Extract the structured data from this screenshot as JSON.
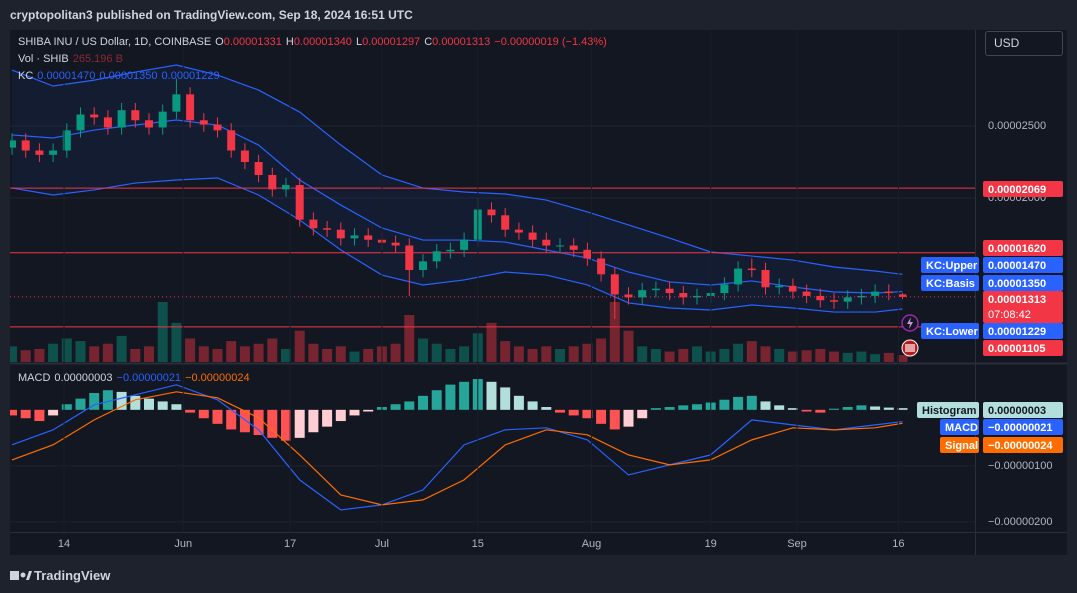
{
  "header": "cryptopolitan3 published on TradingView.com, Sep 18, 2024 16:51 UTC",
  "footer": "TradingView",
  "chart_data": {
    "type": "candlestick",
    "title": "SHIBA INU / US Dollar, 1D, COINBASE",
    "currency": "USD",
    "ohlc_legend": [
      {
        "key": "O",
        "value": "0.00001331"
      },
      {
        "key": "H",
        "value": "0.00001340"
      },
      {
        "key": "L",
        "value": "0.00001297"
      },
      {
        "key": "C",
        "value": "0.00001313"
      }
    ],
    "change": "−0.00000019 (−1.43%)",
    "up_color": "#089981",
    "down_color": "#f23645",
    "open": [
      2.35e-05,
      2.4e-05,
      2.33e-05,
      2.3e-05,
      2.33e-05,
      2.47e-05,
      2.58e-05,
      2.56e-05,
      2.49e-05,
      2.61e-05,
      2.54e-05,
      2.49e-05,
      2.6e-05,
      2.72e-05,
      2.54e-05,
      2.51e-05,
      2.47e-05,
      2.33e-05,
      2.25e-05,
      2.16e-05,
      2.06e-05,
      2.09e-05,
      1.85e-05,
      1.79e-05,
      1.78e-05,
      1.72e-05,
      1.74e-05,
      1.71e-05,
      1.69e-05,
      1.67e-05,
      1.5e-05,
      1.56e-05,
      1.63e-05,
      1.64e-05,
      1.71e-05,
      1.92e-05,
      1.88e-05,
      1.78e-05,
      1.76e-05,
      1.71e-05,
      1.67e-05,
      1.67e-05,
      1.64e-05,
      1.58e-05,
      1.47e-05,
      1.33e-05,
      1.31e-05,
      1.36e-05,
      1.37e-05,
      1.34e-05,
      1.31e-05,
      1.32e-05,
      1.34e-05,
      1.4e-05,
      1.51e-05,
      1.5e-05,
      1.38e-05,
      1.39e-05,
      1.35e-05,
      1.32e-05,
      1.29e-05,
      1.28e-05,
      1.31e-05,
      1.32e-05,
      1.35e-05,
      1.331e-05
    ],
    "high": [
      2.45e-05,
      2.45e-05,
      2.38e-05,
      2.38e-05,
      2.52e-05,
      2.63e-05,
      2.63e-05,
      2.61e-05,
      2.66e-05,
      2.66e-05,
      2.59e-05,
      2.65e-05,
      2.83e-05,
      2.77e-05,
      2.59e-05,
      2.56e-05,
      2.52e-05,
      2.38e-05,
      2.3e-05,
      2.21e-05,
      2.14e-05,
      2.14e-05,
      1.9e-05,
      1.84e-05,
      1.83e-05,
      1.79e-05,
      1.79e-05,
      1.76e-05,
      1.74e-05,
      1.72e-05,
      1.61e-05,
      1.68e-05,
      1.69e-05,
      1.76e-05,
      2e-05,
      1.97e-05,
      1.93e-05,
      1.83e-05,
      1.81e-05,
      1.76e-05,
      1.72e-05,
      1.72e-05,
      1.69e-05,
      1.63e-05,
      1.52e-05,
      1.38e-05,
      1.41e-05,
      1.42e-05,
      1.42e-05,
      1.39e-05,
      1.37e-05,
      1.39e-05,
      1.45e-05,
      1.56e-05,
      1.58e-05,
      1.55e-05,
      1.44e-05,
      1.44e-05,
      1.4e-05,
      1.37e-05,
      1.34e-05,
      1.36e-05,
      1.37e-05,
      1.4e-05,
      1.4e-05,
      1.34e-05
    ],
    "low": [
      2.3e-05,
      2.28e-05,
      2.25e-05,
      2.25e-05,
      2.28e-05,
      2.42e-05,
      2.51e-05,
      2.44e-05,
      2.44e-05,
      2.49e-05,
      2.44e-05,
      2.44e-05,
      2.55e-05,
      2.49e-05,
      2.46e-05,
      2.42e-05,
      2.28e-05,
      2.2e-05,
      2.11e-05,
      2.01e-05,
      2.01e-05,
      1.8e-05,
      1.74e-05,
      1.73e-05,
      1.67e-05,
      1.67e-05,
      1.66e-05,
      1.64e-05,
      1.62e-05,
      1.32e-05,
      1.45e-05,
      1.51e-05,
      1.58e-05,
      1.59e-05,
      1.66e-05,
      1.83e-05,
      1.73e-05,
      1.71e-05,
      1.66e-05,
      1.62e-05,
      1.62e-05,
      1.59e-05,
      1.53e-05,
      1.42e-05,
      1.16e-05,
      1.26e-05,
      1.26e-05,
      1.31e-05,
      1.29e-05,
      1.26e-05,
      1.26e-05,
      1.27e-05,
      1.29e-05,
      1.35e-05,
      1.45e-05,
      1.33e-05,
      1.33e-05,
      1.3e-05,
      1.27e-05,
      1.24e-05,
      1.23e-05,
      1.23e-05,
      1.26e-05,
      1.27e-05,
      1.29e-05,
      1.297e-05
    ],
    "close": [
      2.4e-05,
      2.33e-05,
      2.3e-05,
      2.33e-05,
      2.47e-05,
      2.58e-05,
      2.56e-05,
      2.49e-05,
      2.61e-05,
      2.54e-05,
      2.49e-05,
      2.6e-05,
      2.72e-05,
      2.54e-05,
      2.51e-05,
      2.47e-05,
      2.33e-05,
      2.25e-05,
      2.16e-05,
      2.06e-05,
      2.09e-05,
      1.85e-05,
      1.79e-05,
      1.78e-05,
      1.72e-05,
      1.74e-05,
      1.71e-05,
      1.69e-05,
      1.67e-05,
      1.5e-05,
      1.56e-05,
      1.63e-05,
      1.64e-05,
      1.71e-05,
      1.92e-05,
      1.88e-05,
      1.78e-05,
      1.76e-05,
      1.71e-05,
      1.67e-05,
      1.67e-05,
      1.64e-05,
      1.58e-05,
      1.47e-05,
      1.33e-05,
      1.31e-05,
      1.36e-05,
      1.37e-05,
      1.34e-05,
      1.31e-05,
      1.32e-05,
      1.34e-05,
      1.4e-05,
      1.51e-05,
      1.5e-05,
      1.38e-05,
      1.39e-05,
      1.35e-05,
      1.32e-05,
      1.29e-05,
      1.28e-05,
      1.31e-05,
      1.32e-05,
      1.35e-05,
      1.34e-05,
      1.313e-05
    ],
    "ylim": [
      8.61e-06,
      3.167e-05
    ],
    "yticks": [
      {
        "value": 2.5e-05,
        "label": "0.00002500"
      },
      {
        "value": 2e-05,
        "label": "0.00002000"
      }
    ],
    "xticks": [
      {
        "value": 3.8,
        "label": "14"
      },
      {
        "value": 12.5,
        "label": "Jun"
      },
      {
        "value": 20.3,
        "label": "17"
      },
      {
        "value": 27,
        "label": "Jul"
      },
      {
        "value": 34,
        "label": "15"
      },
      {
        "value": 42.3,
        "label": "Aug"
      },
      {
        "value": 51,
        "label": "19"
      },
      {
        "value": 57.3,
        "label": "Sep"
      },
      {
        "value": 64.7,
        "label": "16"
      }
    ],
    "hlines": [
      {
        "value": 2.069e-05,
        "label": "0.00002069",
        "color": "#f23645"
      },
      {
        "value": 1.62e-05,
        "label": "0.00001620",
        "color": "#f23645"
      },
      {
        "value": 1.105e-05,
        "label": "0.00001105",
        "color": "#f23645"
      }
    ],
    "last_price": {
      "label": "0.00001313",
      "countdown": "07:08:42"
    },
    "volume": {
      "name": "Vol · SHIB",
      "last_label": "265.196 B",
      "values": [
        600,
        450,
        500,
        700,
        900,
        800,
        600,
        700,
        1000,
        500,
        600,
        2300,
        1500,
        900,
        600,
        500,
        800,
        600,
        700,
        900,
        500,
        1200,
        700,
        500,
        600,
        400,
        500,
        600,
        700,
        1800,
        900,
        700,
        500,
        600,
        1100,
        1500,
        800,
        600,
        500,
        600,
        500,
        600,
        700,
        900,
        2300,
        1200,
        600,
        500,
        400,
        500,
        600,
        400,
        500,
        700,
        800,
        600,
        500,
        400,
        450,
        500,
        400,
        350,
        400,
        300,
        350,
        265.196
      ]
    },
    "kc": {
      "name": "KC",
      "fill": "rgba(41,98,255,0.07)",
      "x": [
        0,
        3,
        6,
        9,
        12,
        15,
        18,
        21,
        24,
        27,
        30,
        33,
        36,
        39,
        42,
        45,
        48,
        51,
        54,
        57,
        60,
        63,
        65
      ],
      "series": [
        {
          "name": "KC:Upper",
          "color": "#2962ff",
          "last_label": "0.00001470",
          "values": [
            2.889e-05,
            2.778e-05,
            2.819e-05,
            2.875e-05,
            2.924e-05,
            2.854e-05,
            2.75e-05,
            2.597e-05,
            2.368e-05,
            2.16e-05,
            2.069e-05,
            2.042e-05,
            2.028e-05,
            1.986e-05,
            1.903e-05,
            1.813e-05,
            1.722e-05,
            1.625e-05,
            1.597e-05,
            1.569e-05,
            1.521e-05,
            1.493e-05,
            1.47e-05
          ]
        },
        {
          "name": "KC:Basis",
          "color": "#2962ff",
          "last_label": "0.00001350",
          "values": [
            2.438e-05,
            2.417e-05,
            2.472e-05,
            2.507e-05,
            2.542e-05,
            2.507e-05,
            2.368e-05,
            2.125e-05,
            1.951e-05,
            1.792e-05,
            1.708e-05,
            1.708e-05,
            1.694e-05,
            1.639e-05,
            1.583e-05,
            1.486e-05,
            1.417e-05,
            1.396e-05,
            1.424e-05,
            1.382e-05,
            1.347e-05,
            1.34e-05,
            1.35e-05
          ]
        },
        {
          "name": "KC:Lower",
          "color": "#2962ff",
          "last_label": "0.00001229",
          "values": [
            2.069e-05,
            2.021e-05,
            2.056e-05,
            2.104e-05,
            2.125e-05,
            2.139e-05,
            2.021e-05,
            1.847e-05,
            1.639e-05,
            1.465e-05,
            1.396e-05,
            1.431e-05,
            1.486e-05,
            1.465e-05,
            1.396e-05,
            1.271e-05,
            1.236e-05,
            1.222e-05,
            1.257e-05,
            1.236e-05,
            1.208e-05,
            1.208e-05,
            1.229e-05
          ]
        }
      ]
    },
    "macd": {
      "name": "MACD",
      "ylim": [
        -2.18e-06,
        8e-07
      ],
      "yticks": [
        {
          "value": -1e-06,
          "label": "−0.00000100"
        },
        {
          "value": -2e-06,
          "label": "−0.00000200"
        }
      ],
      "histogram": {
        "name": "Histogram",
        "last_label": "0.00000003",
        "colors": [
          "#26a69a",
          "#b2dfdb",
          "#ff5252",
          "#ffcdd2"
        ],
        "values": [
          -1e-07,
          -1.5e-07,
          -2e-07,
          -1e-07,
          1e-07,
          2e-07,
          3e-07,
          3.5e-07,
          3.2e-07,
          2.5e-07,
          2e-07,
          1.5e-07,
          1e-07,
          -5e-08,
          -1.5e-07,
          -2.5e-07,
          -3.5e-07,
          -4e-07,
          -4.5e-07,
          -5e-07,
          -5.5e-07,
          -5e-07,
          -4e-07,
          -3e-07,
          -2e-07,
          -1e-07,
          -3e-08,
          5e-08,
          1e-07,
          1.5e-07,
          2.5e-07,
          3.5e-07,
          4.5e-07,
          5e-07,
          5.5e-07,
          5e-07,
          4e-07,
          2.5e-07,
          1.5e-07,
          5e-08,
          -5e-08,
          -1e-07,
          -1.5e-07,
          -2.5e-07,
          -3.5e-07,
          -3e-07,
          -1.5e-07,
          3e-08,
          5e-08,
          8e-08,
          1e-07,
          1.3e-07,
          1.8e-07,
          2.3e-07,
          2.5e-07,
          1.5e-07,
          8e-08,
          3e-08,
          -3e-08,
          -5e-08,
          2e-08,
          5e-08,
          8e-08,
          6e-08,
          4e-08,
          3e-08
        ]
      },
      "x": [
        0,
        3,
        6,
        9,
        12,
        15,
        18,
        21,
        24,
        27,
        30,
        33,
        36,
        39,
        42,
        45,
        48,
        51,
        54,
        57,
        60,
        63,
        65
      ],
      "series": [
        {
          "name": "MACD",
          "color": "#2962ff",
          "last_label": "−0.00000021",
          "values": [
            -6.25e-07,
            -3.57e-07,
            8.9e-08,
            2.68e-07,
            4.46e-07,
            1.79e-07,
            -3.57e-07,
            -1.25e-06,
            -1.786e-06,
            -1.696e-06,
            -1.429e-06,
            -6.25e-07,
            -3.57e-07,
            -3.21e-07,
            -5.36e-07,
            -1.161e-06,
            -9.82e-07,
            -8.04e-07,
            -1.79e-07,
            -2.68e-07,
            -3.57e-07,
            -2.68e-07,
            -2.1e-07
          ]
        },
        {
          "name": "Signal",
          "color": "#ff6d00",
          "last_label": "−0.00000024",
          "values": [
            -8.93e-07,
            -6.25e-07,
            -1.79e-07,
            1.79e-07,
            3.21e-07,
            2.14e-07,
            -1.43e-07,
            -8.04e-07,
            -1.518e-06,
            -1.696e-06,
            -1.607e-06,
            -1.25e-06,
            -6.25e-07,
            -3.57e-07,
            -4.46e-07,
            -8.04e-07,
            -9.82e-07,
            -8.93e-07,
            -5.36e-07,
            -3.21e-07,
            -3.57e-07,
            -3.21e-07,
            -2.4e-07
          ]
        }
      ]
    }
  }
}
